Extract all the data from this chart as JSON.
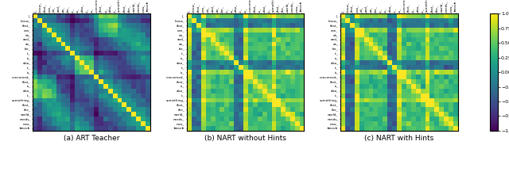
{
  "labels": [
    "I_",
    "know_",
    "that_",
    "can_",
    "do_",
    "and_",
    "an_",
    "for_",
    "it_",
    "is_",
    "also_",
    "it_",
    "is_",
    "concerned_",
    "that_",
    "is_",
    "also_",
    "it_",
    "something_",
    "that_",
    "the_",
    "world_",
    "needs_",
    "now_",
    "★eos★"
  ],
  "n": 25,
  "title_a": "(a) ART Teacher",
  "title_b": "(b) NART without Hints",
  "title_c": "(c) NART with Hints",
  "cmap": "viridis",
  "vmin": -1.0,
  "vmax": 1.0,
  "colorbar_ticks": [
    1.0,
    0.75,
    0.5,
    0.25,
    0.0,
    -0.25,
    -0.5,
    -0.75,
    -1.0
  ],
  "figsize": [
    6.4,
    2.17
  ],
  "dpi": 100
}
